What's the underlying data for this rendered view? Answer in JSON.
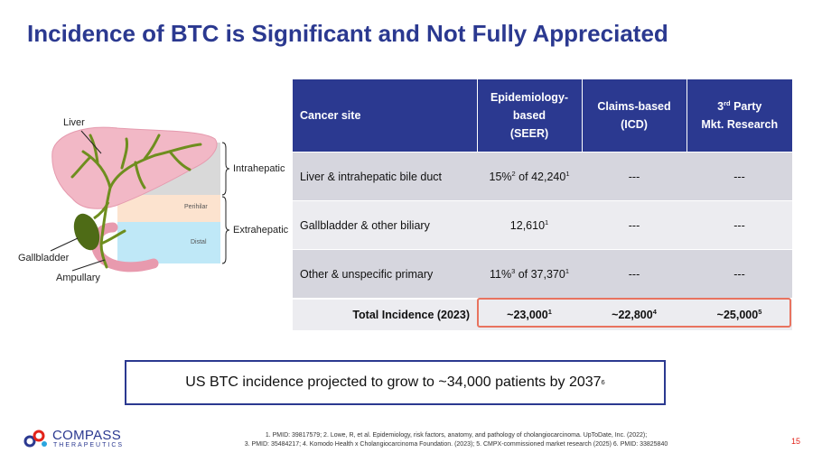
{
  "slide": {
    "title": "Incidence of BTC is Significant and Not Fully Appreciated",
    "page_number": "15"
  },
  "diagram": {
    "labels": {
      "liver": "Liver",
      "gallbladder": "Gallbladder",
      "ampullary": "Ampullary",
      "intrahepatic": "Intrahepatic",
      "extrahepatic": "Extrahepatic",
      "perihilar": "Perihilar",
      "distal": "Distal"
    },
    "colors": {
      "liver": "#F2B8C6",
      "duct": "#6E8E1E",
      "gallbladder": "#4E6B16",
      "intestine": "#E89AAE"
    }
  },
  "table": {
    "headers": {
      "site": "Cancer site",
      "seer_l1": "Epidemiology-",
      "seer_l2": "based",
      "seer_l3": "(SEER)",
      "icd_l1": "Claims-based",
      "icd_l2": "(ICD)",
      "mkt_pre": "3",
      "mkt_sup": "rd",
      "mkt_l1": " Party",
      "mkt_l2": "Mkt. Research"
    },
    "rows": [
      {
        "site": "Liver & intrahepatic bile duct",
        "seer_pre": "15%",
        "seer_sup1": "2",
        "seer_mid": " of 42,240",
        "seer_sup2": "1",
        "icd": "---",
        "mkt": "---"
      },
      {
        "site": "Gallbladder & other biliary",
        "seer_pre": "12,610",
        "seer_sup1": "1",
        "icd": "---",
        "mkt": "---"
      },
      {
        "site": "Other & unspecific primary",
        "seer_pre": "11%",
        "seer_sup1": "3",
        "seer_mid": " of 37,370",
        "seer_sup2": "1",
        "icd": "---",
        "mkt": "---"
      }
    ],
    "total": {
      "label": "Total Incidence (2023)",
      "seer": "~23,000",
      "seer_sup": "1",
      "icd": "~22,800",
      "icd_sup": "4",
      "mkt": "~25,000",
      "mkt_sup": "5"
    },
    "colors": {
      "header": "#2B3990",
      "highlight": "#E8735F"
    }
  },
  "callout": {
    "text": "US BTC incidence projected to grow to ~34,000 patients by 2037",
    "sup": "6"
  },
  "footnotes": {
    "line1": "1. PMID: 39817579; 2. Lowe, R, et al. Epidemiology, risk factors, anatomy, and pathology of cholangiocarcinoma. UpToDate, Inc. (2022);",
    "line2": "3. PMID: 35484217; 4. Komodo Health x Cholangiocarcinoma Foundation. (2023); 5. CMPX-commissioned market research (2025) 6. PMID: 33825840"
  },
  "logo": {
    "name": "COMPASS",
    "tagline": "THERAPEUTICS"
  }
}
